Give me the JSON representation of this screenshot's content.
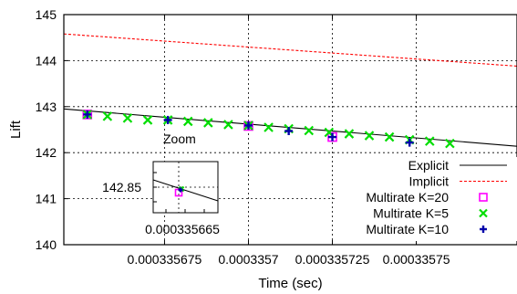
{
  "chart_data": {
    "type": "line",
    "title": "",
    "xlabel": "Time (sec)",
    "ylabel": "Lift",
    "xlim": [
      0.000335645,
      0.00033578
    ],
    "ylim": [
      140,
      145
    ],
    "grid": true,
    "legend_placement": "bottom-right",
    "x_ticks": [
      {
        "value": 0.000335675,
        "label": "0.000335675"
      },
      {
        "value": 0.0003357,
        "label": "0.0003357"
      },
      {
        "value": 0.000335725,
        "label": "0.000335725"
      },
      {
        "value": 0.00033575,
        "label": "0.00033575"
      }
    ],
    "y_ticks": [
      {
        "value": 140,
        "label": "140"
      },
      {
        "value": 141,
        "label": "141"
      },
      {
        "value": 142,
        "label": "142"
      },
      {
        "value": 143,
        "label": "143"
      },
      {
        "value": 144,
        "label": "144"
      },
      {
        "value": 145,
        "label": "145"
      }
    ],
    "series": [
      {
        "name": "Explicit",
        "style": "line",
        "color": "#000000",
        "x": [
          0.000335645,
          0.00033578
        ],
        "y": [
          142.95,
          142.14
        ]
      },
      {
        "name": "Implicit",
        "style": "dashed-line",
        "color": "#ff0000",
        "x": [
          0.000335645,
          0.00033578
        ],
        "y": [
          144.58,
          143.88
        ]
      },
      {
        "name": "Multirate K=20",
        "style": "marker",
        "marker": "open-square",
        "color": "#ff00ff",
        "x": [
          0.000335652,
          0.0003357,
          0.000335725
        ],
        "y": [
          142.83,
          142.58,
          142.34
        ]
      },
      {
        "name": "Multirate K=5",
        "style": "marker",
        "marker": "x",
        "color": "#00dd00",
        "x": [
          0.000335652,
          0.000335658,
          0.000335664,
          0.00033567,
          0.000335676,
          0.000335682,
          0.000335688,
          0.000335694,
          0.0003357,
          0.000335706,
          0.000335712,
          0.000335718,
          0.000335724,
          0.00033573,
          0.000335736,
          0.000335742,
          0.000335748,
          0.000335754,
          0.00033576
        ],
        "y": [
          142.83,
          142.79,
          142.75,
          142.71,
          142.71,
          142.68,
          142.65,
          142.61,
          142.59,
          142.55,
          142.52,
          142.48,
          142.44,
          142.41,
          142.37,
          142.34,
          142.28,
          142.25,
          142.2
        ]
      },
      {
        "name": "Multirate K=10",
        "style": "marker",
        "marker": "plus",
        "color": "#0000aa",
        "x": [
          0.000335652,
          0.000335676,
          0.0003357,
          0.000335712,
          0.000335725,
          0.000335748
        ],
        "y": [
          142.83,
          142.71,
          142.59,
          142.47,
          142.34,
          142.22
        ]
      }
    ],
    "annotations": [
      {
        "text": "Zoom"
      },
      {
        "text": "142.85"
      },
      {
        "text": "0.000335665"
      }
    ]
  }
}
